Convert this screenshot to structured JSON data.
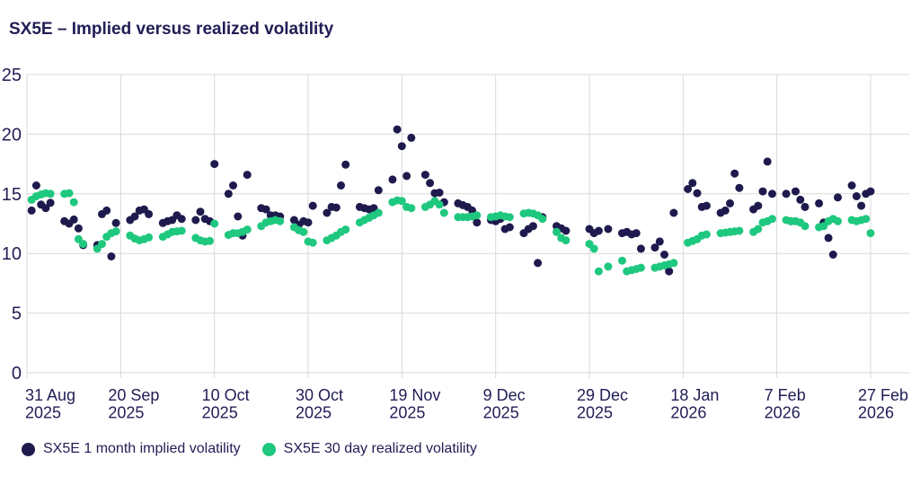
{
  "title": "SX5E – Implied versus realized volatility",
  "colors": {
    "text": "#211d55",
    "grid": "#d9d9d9",
    "background": "#ffffff",
    "implied": "#1e1a4d",
    "realized": "#1ec87e"
  },
  "chart_data": {
    "type": "scatter",
    "title": "SX5E – Implied versus realized volatility",
    "xlabel": "",
    "ylabel": "",
    "grid": true,
    "legend_position": "bottom",
    "y_axis": {
      "ticks": [
        0,
        5,
        10,
        15,
        20,
        25
      ],
      "range": [
        0,
        25
      ]
    },
    "x_axis": {
      "start_date": "2025-08-31",
      "end_date": "2026-02-27",
      "ticks": [
        {
          "label": "31 Aug",
          "year": "2025",
          "day": 0
        },
        {
          "label": "20 Sep",
          "year": "2025",
          "day": 20
        },
        {
          "label": "10 Oct",
          "year": "2025",
          "day": 40
        },
        {
          "label": "30 Oct",
          "year": "2025",
          "day": 60
        },
        {
          "label": "19 Nov",
          "year": "2025",
          "day": 80
        },
        {
          "label": "9 Dec",
          "year": "2025",
          "day": 100
        },
        {
          "label": "29 Dec",
          "year": "2025",
          "day": 120
        },
        {
          "label": "18 Jan",
          "year": "2026",
          "day": 140
        },
        {
          "label": "7 Feb",
          "year": "2026",
          "day": 160
        },
        {
          "label": "27 Feb",
          "year": "2026",
          "day": 180
        }
      ]
    },
    "series": [
      {
        "name": "SX5E 1 month implied volatility",
        "color": "#1e1a4d",
        "points": [
          [
            "2025-09-01",
            13.6
          ],
          [
            "2025-09-02",
            15.7
          ],
          [
            "2025-09-03",
            14.1
          ],
          [
            "2025-09-04",
            13.8
          ],
          [
            "2025-09-05",
            14.25
          ],
          [
            "2025-09-08",
            12.7
          ],
          [
            "2025-09-09",
            12.5
          ],
          [
            "2025-09-10",
            12.85
          ],
          [
            "2025-09-11",
            12.1
          ],
          [
            "2025-09-12",
            10.7
          ],
          [
            "2025-09-15",
            10.7
          ],
          [
            "2025-09-16",
            13.3
          ],
          [
            "2025-09-17",
            13.6
          ],
          [
            "2025-09-18",
            9.75
          ],
          [
            "2025-09-19",
            12.55
          ],
          [
            "2025-09-22",
            12.8
          ],
          [
            "2025-09-23",
            13.1
          ],
          [
            "2025-09-24",
            13.6
          ],
          [
            "2025-09-25",
            13.7
          ],
          [
            "2025-09-26",
            13.3
          ],
          [
            "2025-09-29",
            12.55
          ],
          [
            "2025-09-30",
            12.7
          ],
          [
            "2025-10-01",
            12.8
          ],
          [
            "2025-10-02",
            13.2
          ],
          [
            "2025-10-03",
            12.9
          ],
          [
            "2025-10-06",
            12.8
          ],
          [
            "2025-10-07",
            13.5
          ],
          [
            "2025-10-08",
            12.9
          ],
          [
            "2025-10-09",
            12.7
          ],
          [
            "2025-10-10",
            17.5
          ],
          [
            "2025-10-13",
            15.0
          ],
          [
            "2025-10-14",
            15.7
          ],
          [
            "2025-10-15",
            13.1
          ],
          [
            "2025-10-16",
            11.5
          ],
          [
            "2025-10-17",
            16.6
          ],
          [
            "2025-10-20",
            13.8
          ],
          [
            "2025-10-21",
            13.7
          ],
          [
            "2025-10-22",
            13.2
          ],
          [
            "2025-10-23",
            13.2
          ],
          [
            "2025-10-24",
            13.1
          ],
          [
            "2025-10-27",
            12.8
          ],
          [
            "2025-10-28",
            12.4
          ],
          [
            "2025-10-29",
            12.7
          ],
          [
            "2025-10-30",
            12.6
          ],
          [
            "2025-10-31",
            14.0
          ],
          [
            "2025-11-03",
            13.4
          ],
          [
            "2025-11-04",
            13.9
          ],
          [
            "2025-11-05",
            13.85
          ],
          [
            "2025-11-06",
            15.7
          ],
          [
            "2025-11-07",
            17.45
          ],
          [
            "2025-11-10",
            13.9
          ],
          [
            "2025-11-11",
            13.8
          ],
          [
            "2025-11-12",
            13.7
          ],
          [
            "2025-11-13",
            13.8
          ],
          [
            "2025-11-14",
            15.3
          ],
          [
            "2025-11-17",
            16.2
          ],
          [
            "2025-11-18",
            20.4
          ],
          [
            "2025-11-19",
            19.0
          ],
          [
            "2025-11-20",
            16.5
          ],
          [
            "2025-11-21",
            19.7
          ],
          [
            "2025-11-24",
            16.6
          ],
          [
            "2025-11-25",
            15.9
          ],
          [
            "2025-11-26",
            15.05
          ],
          [
            "2025-11-27",
            15.1
          ],
          [
            "2025-11-28",
            14.3
          ],
          [
            "2025-12-01",
            14.2
          ],
          [
            "2025-12-02",
            14.05
          ],
          [
            "2025-12-03",
            13.9
          ],
          [
            "2025-12-04",
            13.6
          ],
          [
            "2025-12-05",
            12.6
          ],
          [
            "2025-12-08",
            12.8
          ],
          [
            "2025-12-09",
            12.7
          ],
          [
            "2025-12-10",
            12.9
          ],
          [
            "2025-12-11",
            12.05
          ],
          [
            "2025-12-12",
            12.2
          ],
          [
            "2025-12-15",
            11.7
          ],
          [
            "2025-12-16",
            12.05
          ],
          [
            "2025-12-17",
            12.3
          ],
          [
            "2025-12-18",
            9.2
          ],
          [
            "2025-12-19",
            13.05
          ],
          [
            "2025-12-22",
            12.3
          ],
          [
            "2025-12-23",
            12.1
          ],
          [
            "2025-12-24",
            11.9
          ],
          [
            "2025-12-29",
            12.05
          ],
          [
            "2025-12-30",
            11.7
          ],
          [
            "2025-12-31",
            11.9
          ],
          [
            "2026-01-02",
            12.05
          ],
          [
            "2026-01-05",
            11.7
          ],
          [
            "2026-01-06",
            11.8
          ],
          [
            "2026-01-07",
            11.6
          ],
          [
            "2026-01-08",
            11.7
          ],
          [
            "2026-01-09",
            10.4
          ],
          [
            "2026-01-12",
            10.5
          ],
          [
            "2026-01-13",
            11.0
          ],
          [
            "2026-01-14",
            9.9
          ],
          [
            "2026-01-15",
            8.5
          ],
          [
            "2026-01-16",
            13.4
          ],
          [
            "2026-01-19",
            15.4
          ],
          [
            "2026-01-20",
            15.9
          ],
          [
            "2026-01-21",
            15.05
          ],
          [
            "2026-01-22",
            13.9
          ],
          [
            "2026-01-23",
            14.0
          ],
          [
            "2026-01-26",
            13.4
          ],
          [
            "2026-01-27",
            13.6
          ],
          [
            "2026-01-28",
            14.2
          ],
          [
            "2026-01-29",
            16.7
          ],
          [
            "2026-01-30",
            15.5
          ],
          [
            "2026-02-02",
            13.7
          ],
          [
            "2026-02-03",
            14.0
          ],
          [
            "2026-02-04",
            15.2
          ],
          [
            "2026-02-05",
            17.7
          ],
          [
            "2026-02-06",
            15.0
          ],
          [
            "2026-02-09",
            15.0
          ],
          [
            "2026-02-10",
            12.7
          ],
          [
            "2026-02-11",
            15.2
          ],
          [
            "2026-02-12",
            14.5
          ],
          [
            "2026-02-13",
            13.9
          ],
          [
            "2026-02-16",
            14.2
          ],
          [
            "2026-02-17",
            12.6
          ],
          [
            "2026-02-18",
            11.3
          ],
          [
            "2026-02-19",
            9.9
          ],
          [
            "2026-02-20",
            14.7
          ],
          [
            "2026-02-23",
            15.7
          ],
          [
            "2026-02-24",
            14.8
          ],
          [
            "2026-02-25",
            14.0
          ],
          [
            "2026-02-26",
            15.0
          ],
          [
            "2026-02-27",
            15.2
          ]
        ]
      },
      {
        "name": "SX5E 30 day realized volatility",
        "color": "#1ec87e",
        "points": [
          [
            "2025-09-01",
            14.5
          ],
          [
            "2025-09-02",
            14.8
          ],
          [
            "2025-09-03",
            14.95
          ],
          [
            "2025-09-04",
            15.05
          ],
          [
            "2025-09-05",
            15.0
          ],
          [
            "2025-09-08",
            15.0
          ],
          [
            "2025-09-09",
            15.05
          ],
          [
            "2025-09-10",
            14.3
          ],
          [
            "2025-09-11",
            11.2
          ],
          [
            "2025-09-12",
            10.8
          ],
          [
            "2025-09-15",
            10.4
          ],
          [
            "2025-09-16",
            10.8
          ],
          [
            "2025-09-17",
            11.4
          ],
          [
            "2025-09-18",
            11.7
          ],
          [
            "2025-09-19",
            11.85
          ],
          [
            "2025-09-22",
            11.5
          ],
          [
            "2025-09-23",
            11.25
          ],
          [
            "2025-09-24",
            11.1
          ],
          [
            "2025-09-25",
            11.2
          ],
          [
            "2025-09-26",
            11.35
          ],
          [
            "2025-09-29",
            11.4
          ],
          [
            "2025-09-30",
            11.6
          ],
          [
            "2025-10-01",
            11.8
          ],
          [
            "2025-10-02",
            11.85
          ],
          [
            "2025-10-03",
            11.9
          ],
          [
            "2025-10-06",
            11.3
          ],
          [
            "2025-10-07",
            11.1
          ],
          [
            "2025-10-08",
            11.0
          ],
          [
            "2025-10-09",
            11.05
          ],
          [
            "2025-10-10",
            12.5
          ],
          [
            "2025-10-13",
            11.55
          ],
          [
            "2025-10-14",
            11.7
          ],
          [
            "2025-10-15",
            11.7
          ],
          [
            "2025-10-16",
            11.8
          ],
          [
            "2025-10-17",
            12.0
          ],
          [
            "2025-10-20",
            12.3
          ],
          [
            "2025-10-21",
            12.6
          ],
          [
            "2025-10-22",
            12.7
          ],
          [
            "2025-10-23",
            12.8
          ],
          [
            "2025-10-24",
            12.7
          ],
          [
            "2025-10-27",
            12.2
          ],
          [
            "2025-10-28",
            11.95
          ],
          [
            "2025-10-29",
            11.8
          ],
          [
            "2025-10-30",
            11.0
          ],
          [
            "2025-10-31",
            10.9
          ],
          [
            "2025-11-03",
            11.1
          ],
          [
            "2025-11-04",
            11.3
          ],
          [
            "2025-11-05",
            11.5
          ],
          [
            "2025-11-06",
            11.8
          ],
          [
            "2025-11-07",
            12.0
          ],
          [
            "2025-11-10",
            12.6
          ],
          [
            "2025-11-11",
            12.8
          ],
          [
            "2025-11-12",
            13.0
          ],
          [
            "2025-11-13",
            13.2
          ],
          [
            "2025-11-14",
            13.4
          ],
          [
            "2025-11-17",
            14.3
          ],
          [
            "2025-11-18",
            14.45
          ],
          [
            "2025-11-19",
            14.4
          ],
          [
            "2025-11-20",
            13.9
          ],
          [
            "2025-11-21",
            13.8
          ],
          [
            "2025-11-24",
            13.9
          ],
          [
            "2025-11-25",
            14.1
          ],
          [
            "2025-11-26",
            14.4
          ],
          [
            "2025-11-27",
            14.1
          ],
          [
            "2025-11-28",
            13.4
          ],
          [
            "2025-12-01",
            13.05
          ],
          [
            "2025-12-02",
            13.05
          ],
          [
            "2025-12-03",
            13.05
          ],
          [
            "2025-12-04",
            13.1
          ],
          [
            "2025-12-05",
            13.2
          ],
          [
            "2025-12-08",
            13.05
          ],
          [
            "2025-12-09",
            13.1
          ],
          [
            "2025-12-10",
            13.2
          ],
          [
            "2025-12-11",
            13.1
          ],
          [
            "2025-12-12",
            13.05
          ],
          [
            "2025-12-15",
            13.35
          ],
          [
            "2025-12-16",
            13.4
          ],
          [
            "2025-12-17",
            13.35
          ],
          [
            "2025-12-18",
            13.2
          ],
          [
            "2025-12-19",
            12.9
          ],
          [
            "2025-12-22",
            11.8
          ],
          [
            "2025-12-23",
            11.3
          ],
          [
            "2025-12-24",
            11.1
          ],
          [
            "2025-12-29",
            10.8
          ],
          [
            "2025-12-30",
            10.4
          ],
          [
            "2025-12-31",
            8.5
          ],
          [
            "2026-01-02",
            8.9
          ],
          [
            "2026-01-05",
            9.4
          ],
          [
            "2026-01-06",
            8.5
          ],
          [
            "2026-01-07",
            8.6
          ],
          [
            "2026-01-08",
            8.7
          ],
          [
            "2026-01-09",
            8.8
          ],
          [
            "2026-01-12",
            8.8
          ],
          [
            "2026-01-13",
            8.9
          ],
          [
            "2026-01-14",
            9.0
          ],
          [
            "2026-01-15",
            9.1
          ],
          [
            "2026-01-16",
            9.2
          ],
          [
            "2026-01-19",
            10.9
          ],
          [
            "2026-01-20",
            11.05
          ],
          [
            "2026-01-21",
            11.2
          ],
          [
            "2026-01-22",
            11.5
          ],
          [
            "2026-01-23",
            11.6
          ],
          [
            "2026-01-26",
            11.7
          ],
          [
            "2026-01-27",
            11.75
          ],
          [
            "2026-01-28",
            11.8
          ],
          [
            "2026-01-29",
            11.85
          ],
          [
            "2026-01-30",
            11.9
          ],
          [
            "2026-02-02",
            11.8
          ],
          [
            "2026-02-03",
            12.05
          ],
          [
            "2026-02-04",
            12.6
          ],
          [
            "2026-02-05",
            12.7
          ],
          [
            "2026-02-06",
            12.9
          ],
          [
            "2026-02-09",
            12.8
          ],
          [
            "2026-02-10",
            12.7
          ],
          [
            "2026-02-11",
            12.7
          ],
          [
            "2026-02-12",
            12.6
          ],
          [
            "2026-02-13",
            12.3
          ],
          [
            "2026-02-16",
            12.2
          ],
          [
            "2026-02-17",
            12.3
          ],
          [
            "2026-02-18",
            12.7
          ],
          [
            "2026-02-19",
            12.9
          ],
          [
            "2026-02-20",
            12.7
          ],
          [
            "2026-02-23",
            12.8
          ],
          [
            "2026-02-24",
            12.7
          ],
          [
            "2026-02-25",
            12.8
          ],
          [
            "2026-02-26",
            12.9
          ],
          [
            "2026-02-27",
            11.7
          ]
        ]
      }
    ]
  },
  "legend": {
    "items": [
      {
        "label": "SX5E 1 month implied volatility"
      },
      {
        "label": "SX5E 30 day realized volatility"
      }
    ]
  }
}
